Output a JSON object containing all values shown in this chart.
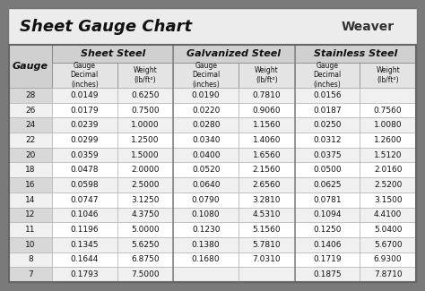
{
  "title": "Sheet Gauge Chart",
  "bg_outer": "#7a7a7a",
  "bg_inner": "#ffffff",
  "title_bg": "#f0f0f0",
  "row_colors": [
    "#d8d8d8",
    "#f0f0f0"
  ],
  "header_section_bg": "#c8c8c8",
  "header_sub_bg": "#e0e0e0",
  "gauges": [
    28,
    26,
    24,
    22,
    20,
    18,
    16,
    14,
    12,
    11,
    10,
    8,
    7
  ],
  "sheet_steel_decimal": [
    "0.0149",
    "0.0179",
    "0.0239",
    "0.0299",
    "0.0359",
    "0.0478",
    "0.0598",
    "0.0747",
    "0.1046",
    "0.1196",
    "0.1345",
    "0.1644",
    "0.1793"
  ],
  "sheet_steel_weight": [
    "0.6250",
    "0.7500",
    "1.0000",
    "1.2500",
    "1.5000",
    "2.0000",
    "2.5000",
    "3.1250",
    "4.3750",
    "5.0000",
    "5.6250",
    "6.8750",
    "7.5000"
  ],
  "galvanized_decimal": [
    "0.0190",
    "0.0220",
    "0.0280",
    "0.0340",
    "0.0400",
    "0.0520",
    "0.0640",
    "0.0790",
    "0.1080",
    "0.1230",
    "0.1380",
    "0.1680",
    ""
  ],
  "galvanized_weight": [
    "0.7810",
    "0.9060",
    "1.1560",
    "1.4060",
    "1.6560",
    "2.1560",
    "2.6560",
    "3.2810",
    "4.5310",
    "5.1560",
    "5.7810",
    "7.0310",
    ""
  ],
  "stainless_decimal": [
    "0.0156",
    "0.0187",
    "0.0250",
    "0.0312",
    "0.0375",
    "0.0500",
    "0.0625",
    "0.0781",
    "0.1094",
    "0.1250",
    "0.1406",
    "0.1719",
    "0.1875"
  ],
  "stainless_weight": [
    "",
    "0.7560",
    "1.0080",
    "1.2600",
    "1.5120",
    "2.0160",
    "2.5200",
    "3.1500",
    "4.4100",
    "5.0400",
    "5.6700",
    "6.9300",
    "7.8710"
  ]
}
